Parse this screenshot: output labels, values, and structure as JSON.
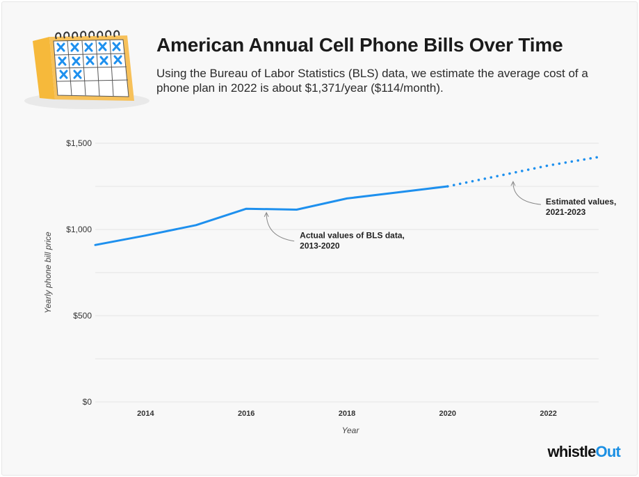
{
  "header": {
    "title": "American Annual Cell Phone Bills Over Time",
    "subtitle": "Using the Bureau of Labor Statistics (BLS) data, we estimate the average cost of a phone plan in 2022 is about $1,371/year ($114/month)."
  },
  "icons": {
    "calendar": "calendar-icon"
  },
  "brand": {
    "name_main": "whistle",
    "name_accent": "Out",
    "accent_color": "#1a8fe3"
  },
  "colors": {
    "line": "#1e90ee",
    "grid": "#e3e3e3",
    "text": "#222222"
  },
  "chart_data": {
    "type": "line",
    "xlabel": "Year",
    "ylabel": "Yearly phone bill price",
    "xlim": [
      2013,
      2023
    ],
    "ylim": [
      0,
      1500
    ],
    "x_ticks": [
      2014,
      2016,
      2018,
      2020,
      2022
    ],
    "x_tick_labels": [
      "2014",
      "2016",
      "2018",
      "2020",
      "2022"
    ],
    "y_ticks": [
      0,
      500,
      1000,
      1500
    ],
    "y_tick_labels": [
      "$0",
      "$500",
      "$1,000",
      "$1,500"
    ],
    "grid": true,
    "series": [
      {
        "style": "solid",
        "x": [
          2013,
          2014,
          2015,
          2016,
          2017,
          2018,
          2019,
          2020
        ],
        "y": [
          910,
          965,
          1025,
          1120,
          1115,
          1180,
          1215,
          1250
        ]
      },
      {
        "style": "dotted",
        "x": [
          2020,
          2021,
          2022,
          2023
        ],
        "y": [
          1250,
          1310,
          1371,
          1420
        ]
      }
    ],
    "annotations": [
      {
        "lines": [
          "Actual values of BLS data,",
          "2013-2020"
        ],
        "target": [
          2016.4,
          1110
        ]
      },
      {
        "lines": [
          "Estimated values,",
          "2021-2023"
        ],
        "target": [
          2021.3,
          1290
        ]
      }
    ]
  }
}
